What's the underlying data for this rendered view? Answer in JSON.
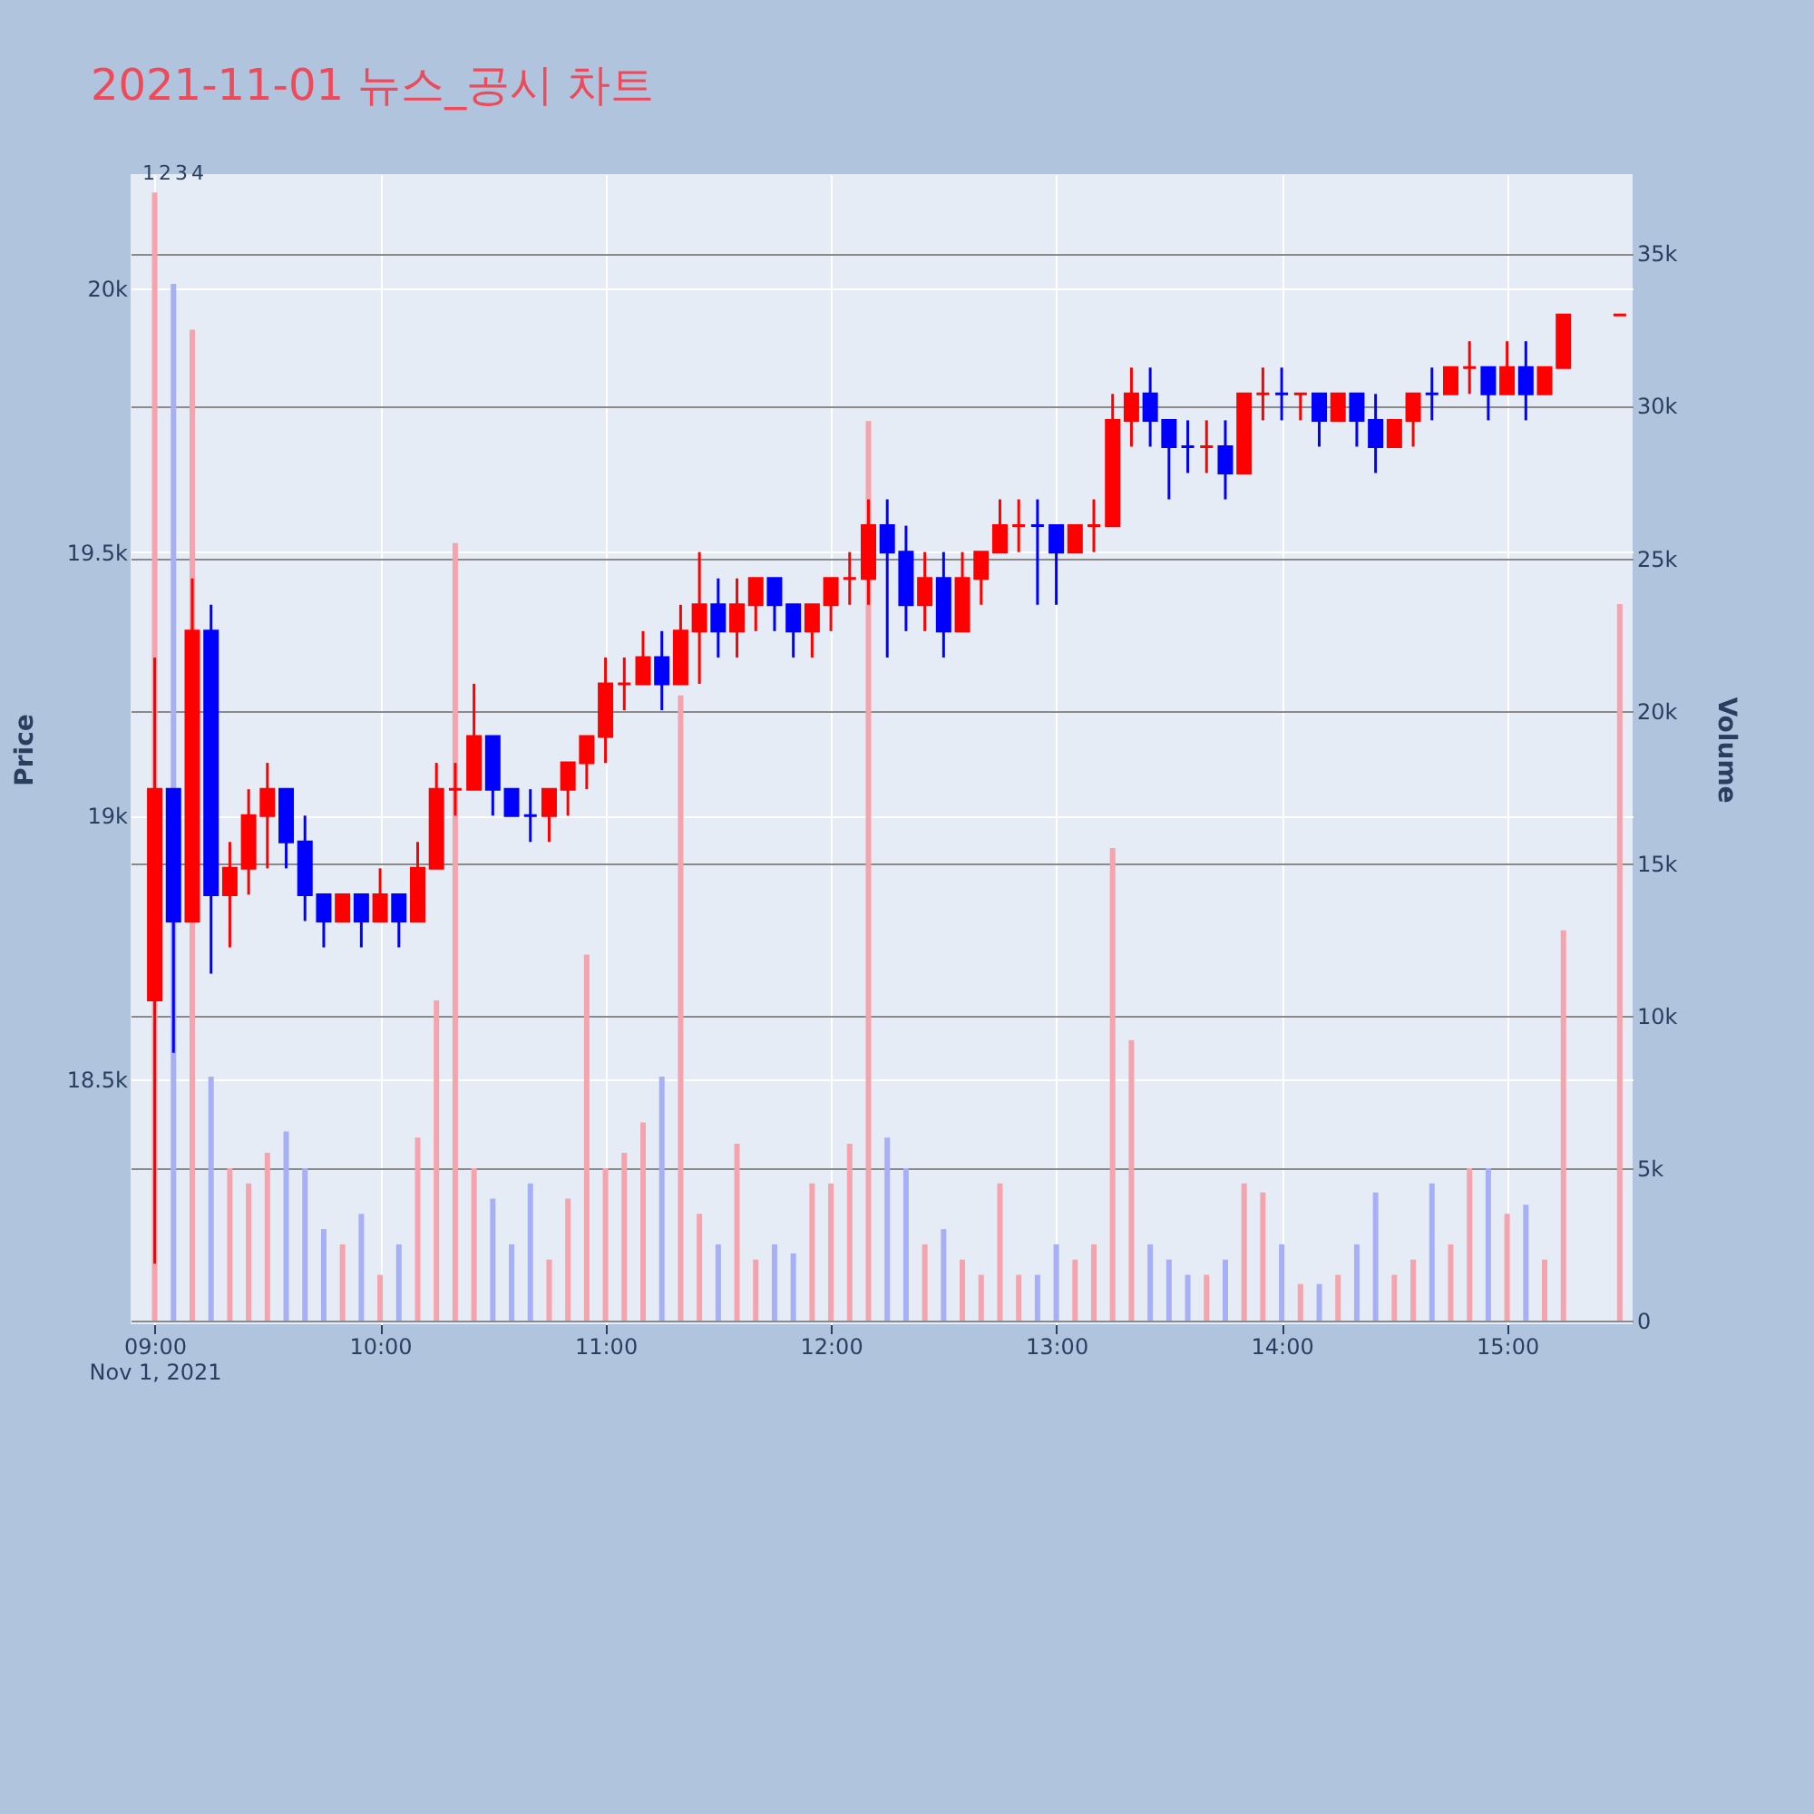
{
  "chart_data": {
    "type": "candlestick",
    "title": "2021-11-01 뉴스_공시 차트",
    "ylabel": "Price",
    "y2label": "Volume",
    "grid": true,
    "x": [
      "2021-11-01T09:00",
      "2021-11-01T09:05",
      "2021-11-01T09:10",
      "2021-11-01T09:15",
      "2021-11-01T09:20",
      "2021-11-01T09:25",
      "2021-11-01T09:30",
      "2021-11-01T09:35",
      "2021-11-01T09:40",
      "2021-11-01T09:45",
      "2021-11-01T09:50",
      "2021-11-01T09:55",
      "2021-11-01T10:00",
      "2021-11-01T10:05",
      "2021-11-01T10:10",
      "2021-11-01T10:15",
      "2021-11-01T10:20",
      "2021-11-01T10:25",
      "2021-11-01T10:30",
      "2021-11-01T10:35",
      "2021-11-01T10:40",
      "2021-11-01T10:45",
      "2021-11-01T10:50",
      "2021-11-01T10:55",
      "2021-11-01T11:00",
      "2021-11-01T11:05",
      "2021-11-01T11:10",
      "2021-11-01T11:15",
      "2021-11-01T11:20",
      "2021-11-01T11:25",
      "2021-11-01T11:30",
      "2021-11-01T11:35",
      "2021-11-01T11:40",
      "2021-11-01T11:45",
      "2021-11-01T11:50",
      "2021-11-01T11:55",
      "2021-11-01T12:00",
      "2021-11-01T12:05",
      "2021-11-01T12:10",
      "2021-11-01T12:15",
      "2021-11-01T12:20",
      "2021-11-01T12:25",
      "2021-11-01T12:30",
      "2021-11-01T12:35",
      "2021-11-01T12:40",
      "2021-11-01T12:45",
      "2021-11-01T12:50",
      "2021-11-01T12:55",
      "2021-11-01T13:00",
      "2021-11-01T13:05",
      "2021-11-01T13:10",
      "2021-11-01T13:15",
      "2021-11-01T13:20",
      "2021-11-01T13:25",
      "2021-11-01T13:30",
      "2021-11-01T13:35",
      "2021-11-01T13:40",
      "2021-11-01T13:45",
      "2021-11-01T13:50",
      "2021-11-01T13:55",
      "2021-11-01T14:00",
      "2021-11-01T14:05",
      "2021-11-01T14:10",
      "2021-11-01T14:15",
      "2021-11-01T14:20",
      "2021-11-01T14:25",
      "2021-11-01T14:30",
      "2021-11-01T14:35",
      "2021-11-01T14:40",
      "2021-11-01T14:45",
      "2021-11-01T14:50",
      "2021-11-01T14:55",
      "2021-11-01T15:00",
      "2021-11-01T15:05",
      "2021-11-01T15:10",
      "2021-11-01T15:15",
      "2021-11-01T15:30"
    ],
    "ohlc": [
      [
        18650,
        19300,
        18150,
        19050
      ],
      [
        19050,
        19050,
        18550,
        18800
      ],
      [
        18800,
        19450,
        18800,
        19350
      ],
      [
        19350,
        19400,
        18700,
        18850
      ],
      [
        18850,
        18950,
        18750,
        18900
      ],
      [
        18900,
        19050,
        18850,
        19000
      ],
      [
        19000,
        19100,
        18900,
        19050
      ],
      [
        19050,
        19050,
        18900,
        18950
      ],
      [
        18950,
        19000,
        18800,
        18850
      ],
      [
        18850,
        18850,
        18750,
        18800
      ],
      [
        18800,
        18850,
        18800,
        18850
      ],
      [
        18850,
        18850,
        18750,
        18800
      ],
      [
        18800,
        18900,
        18800,
        18850
      ],
      [
        18850,
        18850,
        18750,
        18800
      ],
      [
        18800,
        18950,
        18800,
        18900
      ],
      [
        18900,
        19100,
        18900,
        19050
      ],
      [
        19050,
        19100,
        19000,
        19050
      ],
      [
        19050,
        19250,
        19050,
        19150
      ],
      [
        19150,
        19150,
        19000,
        19050
      ],
      [
        19050,
        19050,
        19000,
        19000
      ],
      [
        19000,
        19050,
        18950,
        19000
      ],
      [
        19000,
        19050,
        18950,
        19050
      ],
      [
        19050,
        19100,
        19000,
        19100
      ],
      [
        19100,
        19150,
        19050,
        19150
      ],
      [
        19150,
        19300,
        19100,
        19250
      ],
      [
        19250,
        19300,
        19200,
        19250
      ],
      [
        19250,
        19350,
        19250,
        19300
      ],
      [
        19300,
        19350,
        19200,
        19250
      ],
      [
        19250,
        19400,
        19250,
        19350
      ],
      [
        19350,
        19500,
        19250,
        19400
      ],
      [
        19400,
        19450,
        19300,
        19350
      ],
      [
        19350,
        19450,
        19300,
        19400
      ],
      [
        19400,
        19450,
        19350,
        19450
      ],
      [
        19450,
        19450,
        19350,
        19400
      ],
      [
        19400,
        19400,
        19300,
        19350
      ],
      [
        19350,
        19400,
        19300,
        19400
      ],
      [
        19400,
        19450,
        19350,
        19450
      ],
      [
        19450,
        19500,
        19400,
        19450
      ],
      [
        19450,
        19600,
        19400,
        19550
      ],
      [
        19550,
        19600,
        19300,
        19500
      ],
      [
        19500,
        19550,
        19350,
        19400
      ],
      [
        19400,
        19500,
        19350,
        19450
      ],
      [
        19450,
        19500,
        19300,
        19350
      ],
      [
        19350,
        19500,
        19350,
        19450
      ],
      [
        19450,
        19500,
        19400,
        19500
      ],
      [
        19500,
        19600,
        19500,
        19550
      ],
      [
        19550,
        19600,
        19500,
        19550
      ],
      [
        19550,
        19600,
        19400,
        19550
      ],
      [
        19550,
        19550,
        19400,
        19500
      ],
      [
        19500,
        19550,
        19500,
        19550
      ],
      [
        19550,
        19600,
        19500,
        19550
      ],
      [
        19550,
        19800,
        19550,
        19750
      ],
      [
        19750,
        19850,
        19700,
        19800
      ],
      [
        19800,
        19850,
        19700,
        19750
      ],
      [
        19750,
        19750,
        19600,
        19700
      ],
      [
        19700,
        19750,
        19650,
        19700
      ],
      [
        19700,
        19750,
        19650,
        19700
      ],
      [
        19700,
        19750,
        19600,
        19650
      ],
      [
        19650,
        19800,
        19650,
        19800
      ],
      [
        19800,
        19850,
        19750,
        19800
      ],
      [
        19800,
        19850,
        19750,
        19800
      ],
      [
        19800,
        19800,
        19750,
        19800
      ],
      [
        19800,
        19800,
        19700,
        19750
      ],
      [
        19750,
        19800,
        19750,
        19800
      ],
      [
        19800,
        19800,
        19700,
        19750
      ],
      [
        19750,
        19800,
        19650,
        19700
      ],
      [
        19700,
        19750,
        19700,
        19750
      ],
      [
        19750,
        19800,
        19700,
        19800
      ],
      [
        19800,
        19850,
        19750,
        19800
      ],
      [
        19800,
        19850,
        19800,
        19850
      ],
      [
        19850,
        19900,
        19800,
        19850
      ],
      [
        19850,
        19850,
        19750,
        19800
      ],
      [
        19800,
        19900,
        19800,
        19850
      ],
      [
        19850,
        19900,
        19750,
        19800
      ],
      [
        19800,
        19850,
        19800,
        19850
      ],
      [
        19850,
        19950,
        19850,
        19950
      ],
      [
        19950,
        19950,
        19950,
        19950
      ]
    ],
    "colors": [
      "#ff0000",
      "#0000ff",
      "#ff0000",
      "#0000ff",
      "#ff0000",
      "#ff0000",
      "#ff0000",
      "#0000ff",
      "#0000ff",
      "#0000ff",
      "#ff0000",
      "#0000ff",
      "#ff0000",
      "#0000ff",
      "#ff0000",
      "#ff0000",
      "#ff0000",
      "#ff0000",
      "#0000ff",
      "#0000ff",
      "#0000ff",
      "#ff0000",
      "#ff0000",
      "#ff0000",
      "#ff0000",
      "#ff0000",
      "#ff0000",
      "#0000ff",
      "#ff0000",
      "#ff0000",
      "#0000ff",
      "#ff0000",
      "#ff0000",
      "#0000ff",
      "#0000ff",
      "#ff0000",
      "#ff0000",
      "#ff0000",
      "#ff0000",
      "#0000ff",
      "#0000ff",
      "#ff0000",
      "#0000ff",
      "#ff0000",
      "#ff0000",
      "#ff0000",
      "#ff0000",
      "#0000ff",
      "#0000ff",
      "#ff0000",
      "#ff0000",
      "#ff0000",
      "#ff0000",
      "#0000ff",
      "#0000ff",
      "#0000ff",
      "#ff0000",
      "#0000ff",
      "#ff0000",
      "#ff0000",
      "#0000ff",
      "#ff0000",
      "#0000ff",
      "#ff0000",
      "#0000ff",
      "#0000ff",
      "#ff0000",
      "#ff0000",
      "#0000ff",
      "#ff0000",
      "#ff0000",
      "#0000ff",
      "#ff0000",
      "#0000ff",
      "#ff0000",
      "#ff0000",
      "#ff0000"
    ],
    "series": [
      {
        "type": "bar",
        "axis": "y2",
        "values": [
          37000,
          34000,
          32500,
          8000,
          5000,
          4500,
          5500,
          6200,
          5000,
          3000,
          2500,
          3500,
          1500,
          2500,
          6000,
          10500,
          25500,
          5000,
          4000,
          2500,
          4500,
          2000,
          4000,
          12000,
          5000,
          5500,
          6500,
          8000,
          20500,
          3500,
          2500,
          5800,
          2000,
          2500,
          2200,
          4500,
          4500,
          5800,
          29500,
          6000,
          5000,
          2500,
          3000,
          2000,
          1500,
          4500,
          1500,
          1500,
          2500,
          2000,
          2500,
          15500,
          9200,
          2500,
          2000,
          1500,
          1500,
          2000,
          4500,
          4200,
          2500,
          1200,
          1200,
          1500,
          2500,
          4200,
          1500,
          2000,
          4500,
          2500,
          5000,
          5000,
          3500,
          3800,
          2000,
          12800,
          23500
        ],
        "colors": [
          "#f5a3ad",
          "#a8b0f5",
          "#f5a3ad",
          "#a8b0f5",
          "#f5a3ad",
          "#f5a3ad",
          "#f5a3ad",
          "#a8b0f5",
          "#a8b0f5",
          "#a8b0f5",
          "#f5a3ad",
          "#a8b0f5",
          "#f5a3ad",
          "#a8b0f5",
          "#f5a3ad",
          "#f5a3ad",
          "#f5a3ad",
          "#f5a3ad",
          "#a8b0f5",
          "#a8b0f5",
          "#a8b0f5",
          "#f5a3ad",
          "#f5a3ad",
          "#f5a3ad",
          "#f5a3ad",
          "#f5a3ad",
          "#f5a3ad",
          "#a8b0f5",
          "#f5a3ad",
          "#f5a3ad",
          "#a8b0f5",
          "#f5a3ad",
          "#f5a3ad",
          "#a8b0f5",
          "#a8b0f5",
          "#f5a3ad",
          "#f5a3ad",
          "#f5a3ad",
          "#f5a3ad",
          "#a8b0f5",
          "#a8b0f5",
          "#f5a3ad",
          "#a8b0f5",
          "#f5a3ad",
          "#f5a3ad",
          "#f5a3ad",
          "#f5a3ad",
          "#a8b0f5",
          "#a8b0f5",
          "#f5a3ad",
          "#f5a3ad",
          "#f5a3ad",
          "#f5a3ad",
          "#a8b0f5",
          "#a8b0f5",
          "#a8b0f5",
          "#f5a3ad",
          "#a8b0f5",
          "#f5a3ad",
          "#f5a3ad",
          "#a8b0f5",
          "#f5a3ad",
          "#a8b0f5",
          "#f5a3ad",
          "#a8b0f5",
          "#a8b0f5",
          "#f5a3ad",
          "#f5a3ad",
          "#a8b0f5",
          "#f5a3ad",
          "#f5a3ad",
          "#a8b0f5",
          "#f5a3ad",
          "#a8b0f5",
          "#f5a3ad",
          "#f5a3ad",
          "#f5a3ad"
        ]
      }
    ],
    "xlim": [
      "2021-11-01T08:56",
      "2021-11-01T15:31"
    ],
    "xticks": [
      {
        "value": "2021-11-01T09:00",
        "label": "09:00\nNov 1, 2021"
      },
      {
        "value": "2021-11-01T10:00",
        "label": "10:00"
      },
      {
        "value": "2021-11-01T11:00",
        "label": "11:00"
      },
      {
        "value": "2021-11-01T12:00",
        "label": "12:00"
      },
      {
        "value": "2021-11-01T13:00",
        "label": "13:00"
      },
      {
        "value": "2021-11-01T14:00",
        "label": "14:00"
      },
      {
        "value": "2021-11-01T15:00",
        "label": "15:00"
      }
    ],
    "ylim": [
      18035,
      20217
    ],
    "yticks": [
      {
        "value": 18500,
        "label": "18.5k"
      },
      {
        "value": 19000,
        "label": "19k"
      },
      {
        "value": 19500,
        "label": "19.5k"
      },
      {
        "value": 20000,
        "label": "20k"
      }
    ],
    "y2lim": [
      -120,
      37600
    ],
    "y2ticks": [
      0,
      {
        "value": 5000,
        "label": "5k"
      },
      {
        "value": 10000,
        "label": "10k"
      },
      {
        "value": 15000,
        "label": "15k"
      },
      {
        "value": 20000,
        "label": "20k"
      },
      {
        "value": 25000,
        "label": "25k"
      },
      {
        "value": 30000,
        "label": "30k"
      },
      {
        "value": 35000,
        "label": "35k"
      }
    ],
    "annotations": [
      "1",
      "2",
      "3",
      "4"
    ]
  }
}
